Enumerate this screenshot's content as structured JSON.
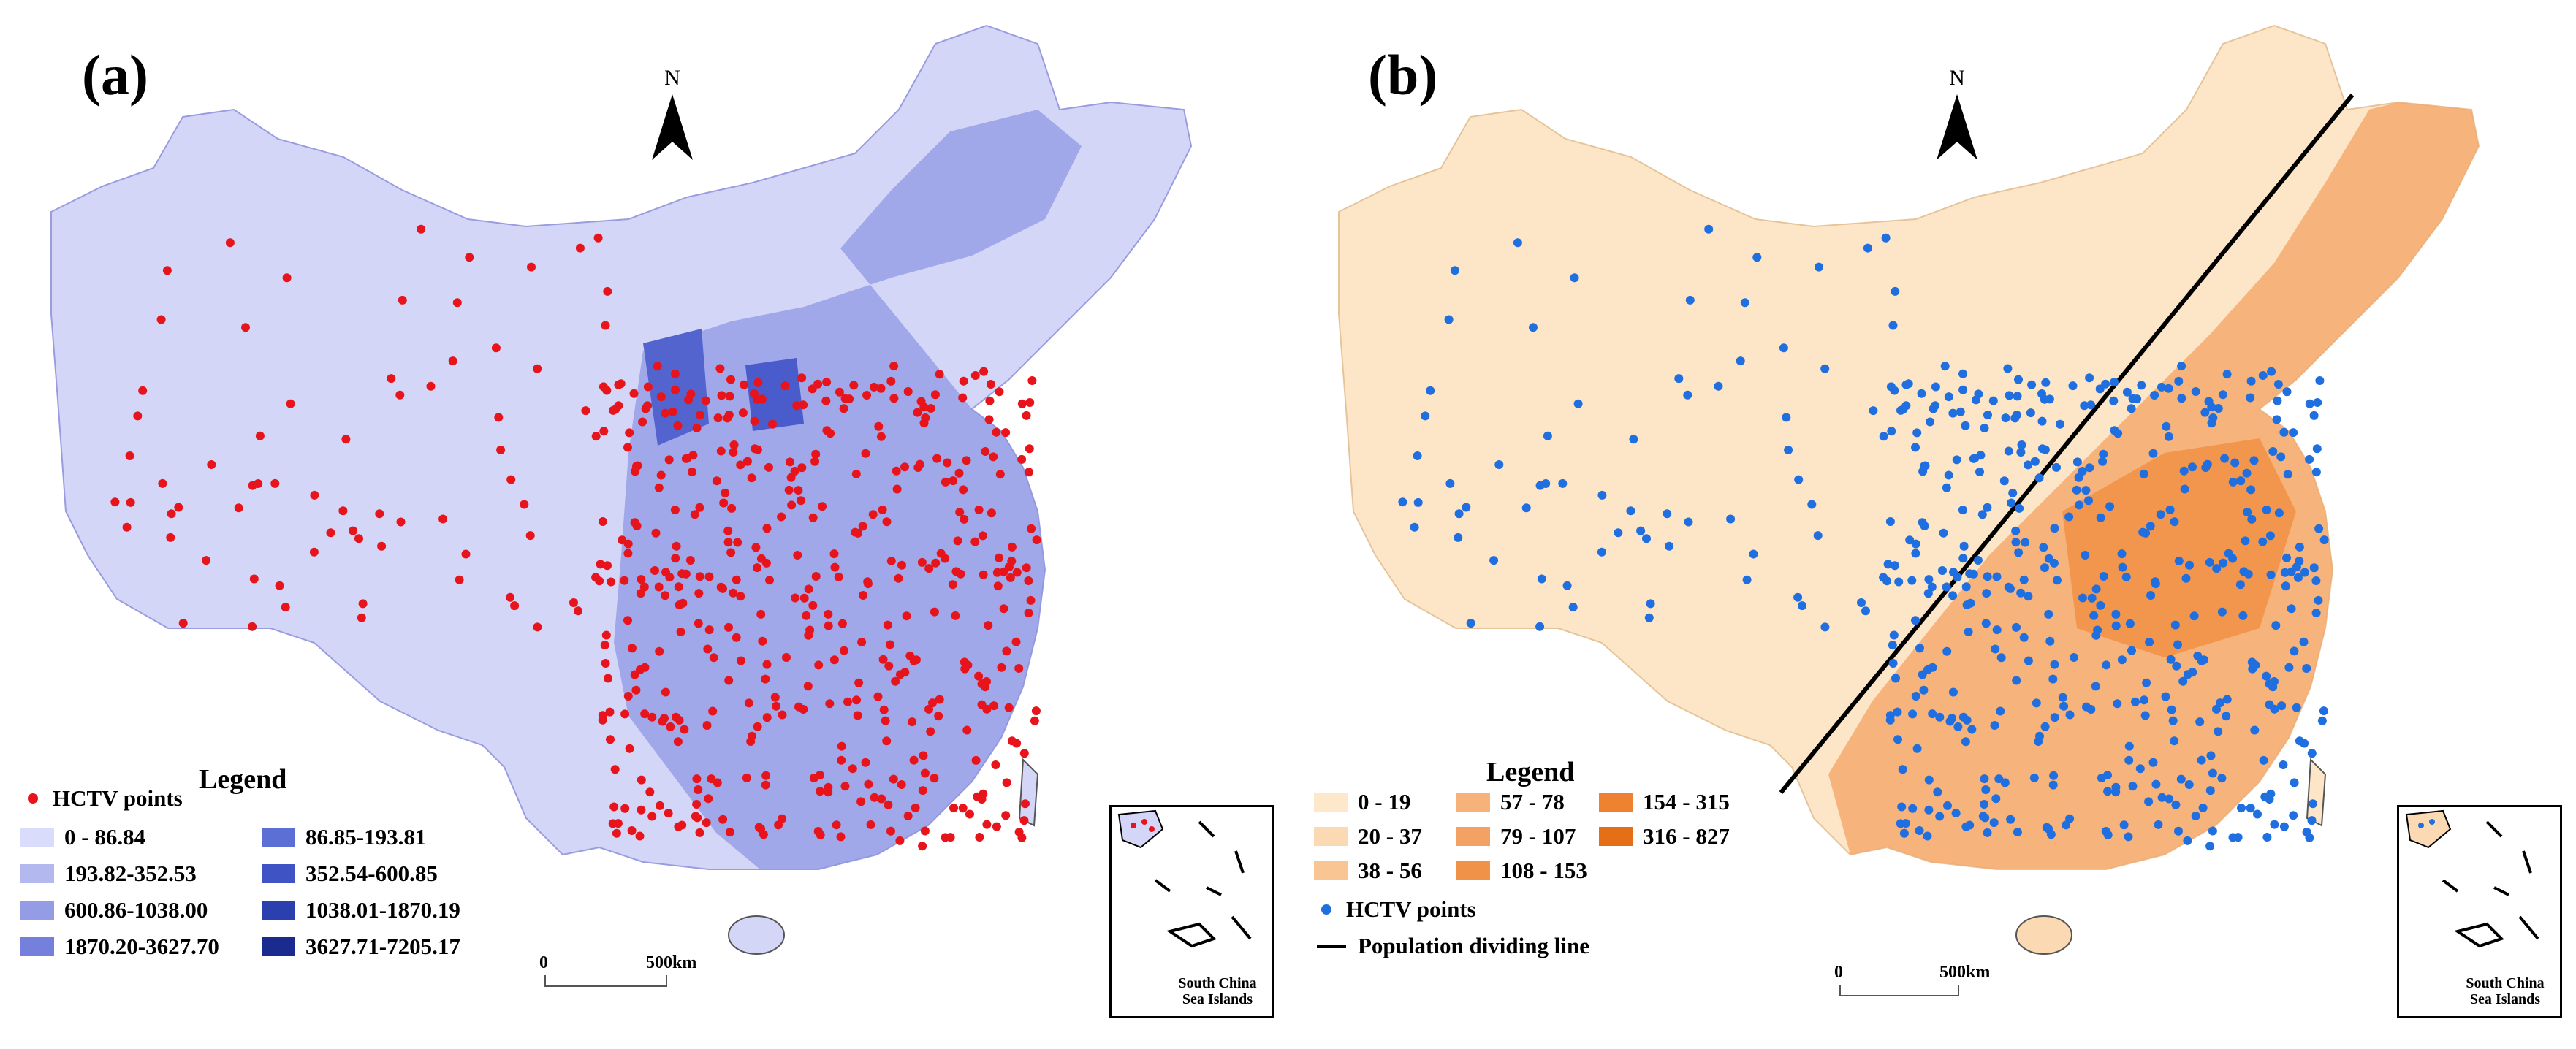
{
  "panel_a": {
    "letter": "(a)",
    "north_label": "N",
    "legend": {
      "title": "Legend",
      "points_label": "HCTV points",
      "classes": [
        {
          "label": "0 - 86.84",
          "color": "#d9dcfb"
        },
        {
          "label": "86.85-193.81",
          "color": "#5b6fd4"
        },
        {
          "label": "193.82-352.53",
          "color": "#b3b9ef"
        },
        {
          "label": "352.54-600.85",
          "color": "#3f53c4"
        },
        {
          "label": "600.86-1038.00",
          "color": "#949ce6"
        },
        {
          "label": "1038.01-1870.19",
          "color": "#2b3fae"
        },
        {
          "label": "1870.20-3627.70",
          "color": "#7480dc"
        },
        {
          "label": "3627.71-7205.17",
          "color": "#1a2a8f"
        }
      ]
    },
    "scale": {
      "start": "0",
      "end": "500km"
    },
    "inset_label": [
      "South China",
      "Sea Islands"
    ],
    "point_color": "#e8141c",
    "base_color": "#d4d6f8"
  },
  "panel_b": {
    "letter": "(b)",
    "north_label": "N",
    "legend": {
      "title": "Legend",
      "classes": [
        {
          "label": "0 - 19",
          "color": "#fde8cc"
        },
        {
          "label": "57 - 78",
          "color": "#f7b27a"
        },
        {
          "label": "154 - 315",
          "color": "#ee8231"
        },
        {
          "label": "20 - 37",
          "color": "#fbd9b2"
        },
        {
          "label": "79 - 107",
          "color": "#f4a263"
        },
        {
          "label": "316 - 827",
          "color": "#e56f17"
        },
        {
          "label": "38 - 56",
          "color": "#f9c593"
        },
        {
          "label": "108 - 153",
          "color": "#f19249"
        }
      ],
      "points_label": "HCTV points",
      "line_label": "Population dividing line"
    },
    "scale": {
      "start": "0",
      "end": "500km"
    },
    "inset_label": [
      "South China",
      "Sea Islands"
    ],
    "point_color": "#1f6fe0",
    "base_color": "#fde6c8"
  }
}
